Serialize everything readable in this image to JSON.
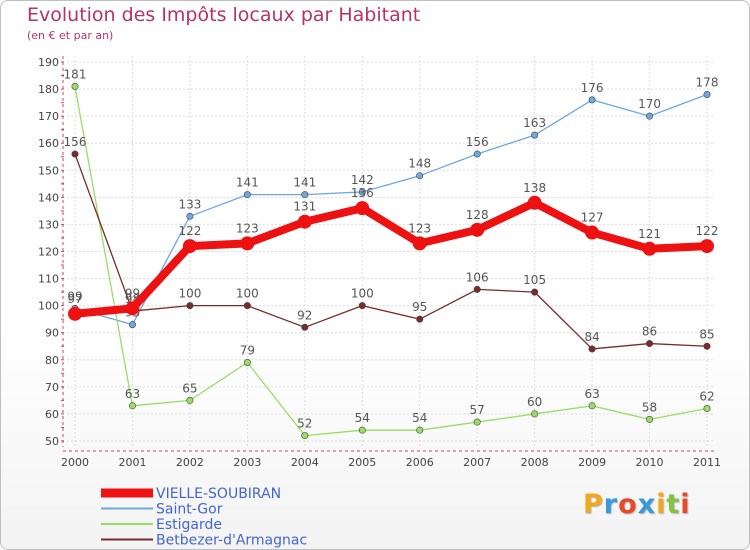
{
  "header": {
    "title": "Evolution des Impôts locaux par Habitant",
    "subtitle": "(en € et par an)"
  },
  "logo": {
    "letters": [
      "P",
      "r",
      "o",
      "x",
      "i",
      "t",
      "i"
    ],
    "colors": [
      "#f0a81c",
      "#3a9ad9",
      "#e8492b",
      "#3a9ad9",
      "#f0a81c",
      "#83c341",
      "#e8492b"
    ]
  },
  "chart_data": {
    "type": "line",
    "title": "Evolution des Impôts locaux par Habitant",
    "subtitle": "(en € et par an)",
    "xlabel": "",
    "ylabel": "",
    "categories": [
      "2000",
      "2001",
      "2002",
      "2003",
      "2004",
      "2005",
      "2006",
      "2007",
      "2008",
      "2009",
      "2010",
      "2011"
    ],
    "ylim": [
      50,
      190
    ],
    "yticks": [
      50,
      60,
      70,
      80,
      90,
      100,
      110,
      120,
      130,
      140,
      150,
      160,
      170,
      180,
      190
    ],
    "grid": true,
    "legend_position": "bottom-left",
    "series": [
      {
        "name": "VIELLE-SOUBIRAN",
        "color": "#ee1111",
        "bold": true,
        "values": [
          97,
          99,
          122,
          123,
          131,
          136,
          123,
          128,
          138,
          127,
          121,
          122
        ],
        "labels": [
          "97",
          "99",
          "122",
          "123",
          "131",
          "136",
          "123",
          "128",
          "138",
          "127",
          "121",
          "122"
        ]
      },
      {
        "name": "Saint-Gor",
        "color": "#6fa8dc",
        "bold": false,
        "values": [
          99,
          93,
          133,
          141,
          141,
          142,
          148,
          156,
          163,
          176,
          170,
          178
        ],
        "labels": [
          "99",
          "93",
          "133",
          "141",
          "141",
          "142",
          "148",
          "156",
          "163",
          "176",
          "170",
          "178"
        ]
      },
      {
        "name": "Estigarde",
        "color": "#99dd66",
        "bold": false,
        "values": [
          181,
          63,
          65,
          79,
          52,
          54,
          54,
          57,
          60,
          63,
          58,
          62
        ],
        "labels": [
          "181",
          "63",
          "65",
          "79",
          "52",
          "54",
          "54",
          "57",
          "60",
          "63",
          "58",
          "62"
        ]
      },
      {
        "name": "Betbezer-d'Armagnac",
        "color": "#7a2a2a",
        "bold": false,
        "values": [
          156,
          98,
          100,
          100,
          92,
          100,
          95,
          106,
          105,
          84,
          86,
          85
        ],
        "labels": [
          "156",
          "98",
          "100",
          "100",
          "92",
          "100",
          "95",
          "106",
          "105",
          "84",
          "86",
          "85"
        ]
      }
    ]
  }
}
